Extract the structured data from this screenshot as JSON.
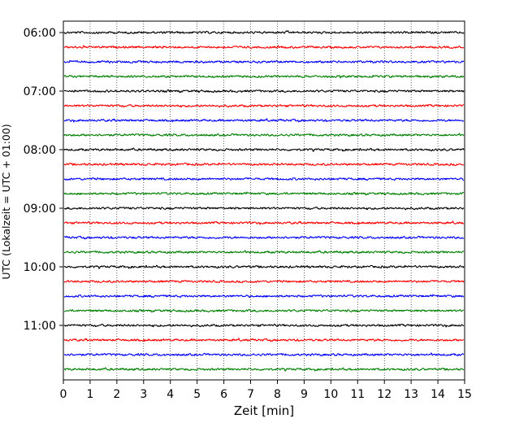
{
  "chart_data": {
    "type": "line",
    "title": "",
    "xlabel": "Zeit  [min]",
    "ylabel": "UTC (Lokalzeit = UTC + 01:00)",
    "xlim": [
      0,
      15
    ],
    "x_ticks": [
      0,
      1,
      2,
      3,
      4,
      5,
      6,
      7,
      8,
      9,
      10,
      11,
      12,
      13,
      14,
      15
    ],
    "x_tick_labels": [
      "0",
      "1",
      "2",
      "3",
      "4",
      "5",
      "6",
      "7",
      "8",
      "9",
      "10",
      "11",
      "12",
      "13",
      "14",
      "15"
    ],
    "vertical_grid": true,
    "grid_style": "dotted",
    "y_tick_labels": [
      "06:00",
      "07:00",
      "08:00",
      "09:00",
      "10:00",
      "11:00"
    ],
    "trace_interval_minutes": 15,
    "traces_per_hour": 4,
    "start_time": "06:00",
    "trace_count": 24,
    "trace_colors": [
      "#000000",
      "#ff0000",
      "#0000ff",
      "#008000"
    ]
  }
}
